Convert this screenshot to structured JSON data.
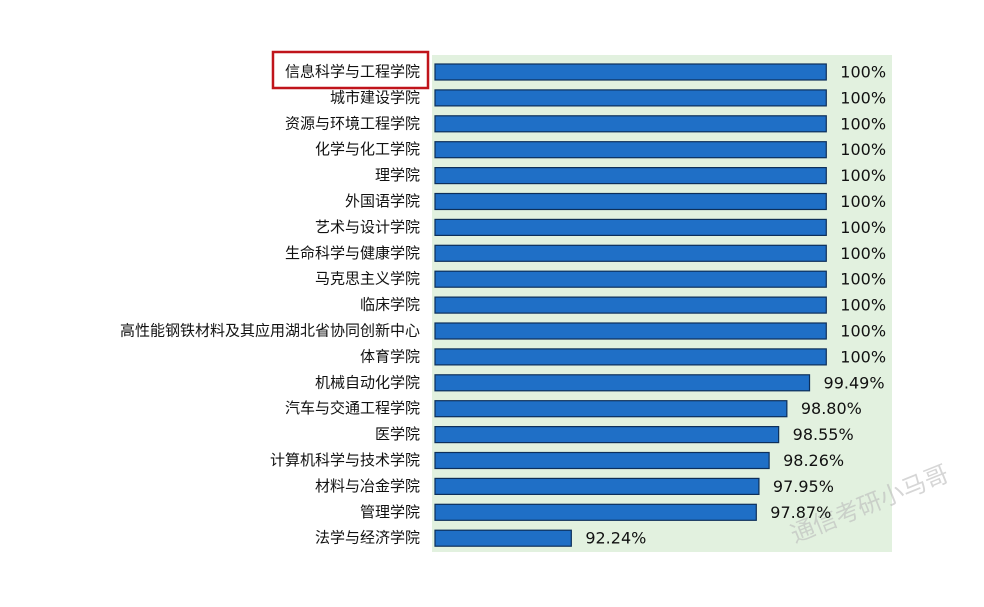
{
  "chart_data": {
    "type": "barh",
    "categories": [
      "信息科学与工程学院",
      "城市建设学院",
      "资源与环境工程学院",
      "化学与化工学院",
      "理学院",
      "外国语学院",
      "艺术与设计学院",
      "生命科学与健康学院",
      "马克思主义学院",
      "临床学院",
      "高性能钢铁材料及其应用湖北省协同创新中心",
      "体育学院",
      "机械自动化学院",
      "汽车与交通工程学院",
      "医学院",
      "计算机科学与技术学院",
      "材料与冶金学院",
      "管理学院",
      "法学与经济学院"
    ],
    "values": [
      100,
      100,
      100,
      100,
      100,
      100,
      100,
      100,
      100,
      100,
      100,
      100,
      99.49,
      98.8,
      98.55,
      98.26,
      97.95,
      97.87,
      92.24
    ],
    "value_labels": [
      "100%",
      "100%",
      "100%",
      "100%",
      "100%",
      "100%",
      "100%",
      "100%",
      "100%",
      "100%",
      "100%",
      "100%",
      "99.49%",
      "98.80%",
      "98.55%",
      "98.26%",
      "97.95%",
      "97.87%",
      "92.24%"
    ],
    "color": "#1f6fc6",
    "xlim": [
      88,
      102
    ],
    "highlighted_category": 0,
    "watermark": "通信考研小马哥"
  }
}
